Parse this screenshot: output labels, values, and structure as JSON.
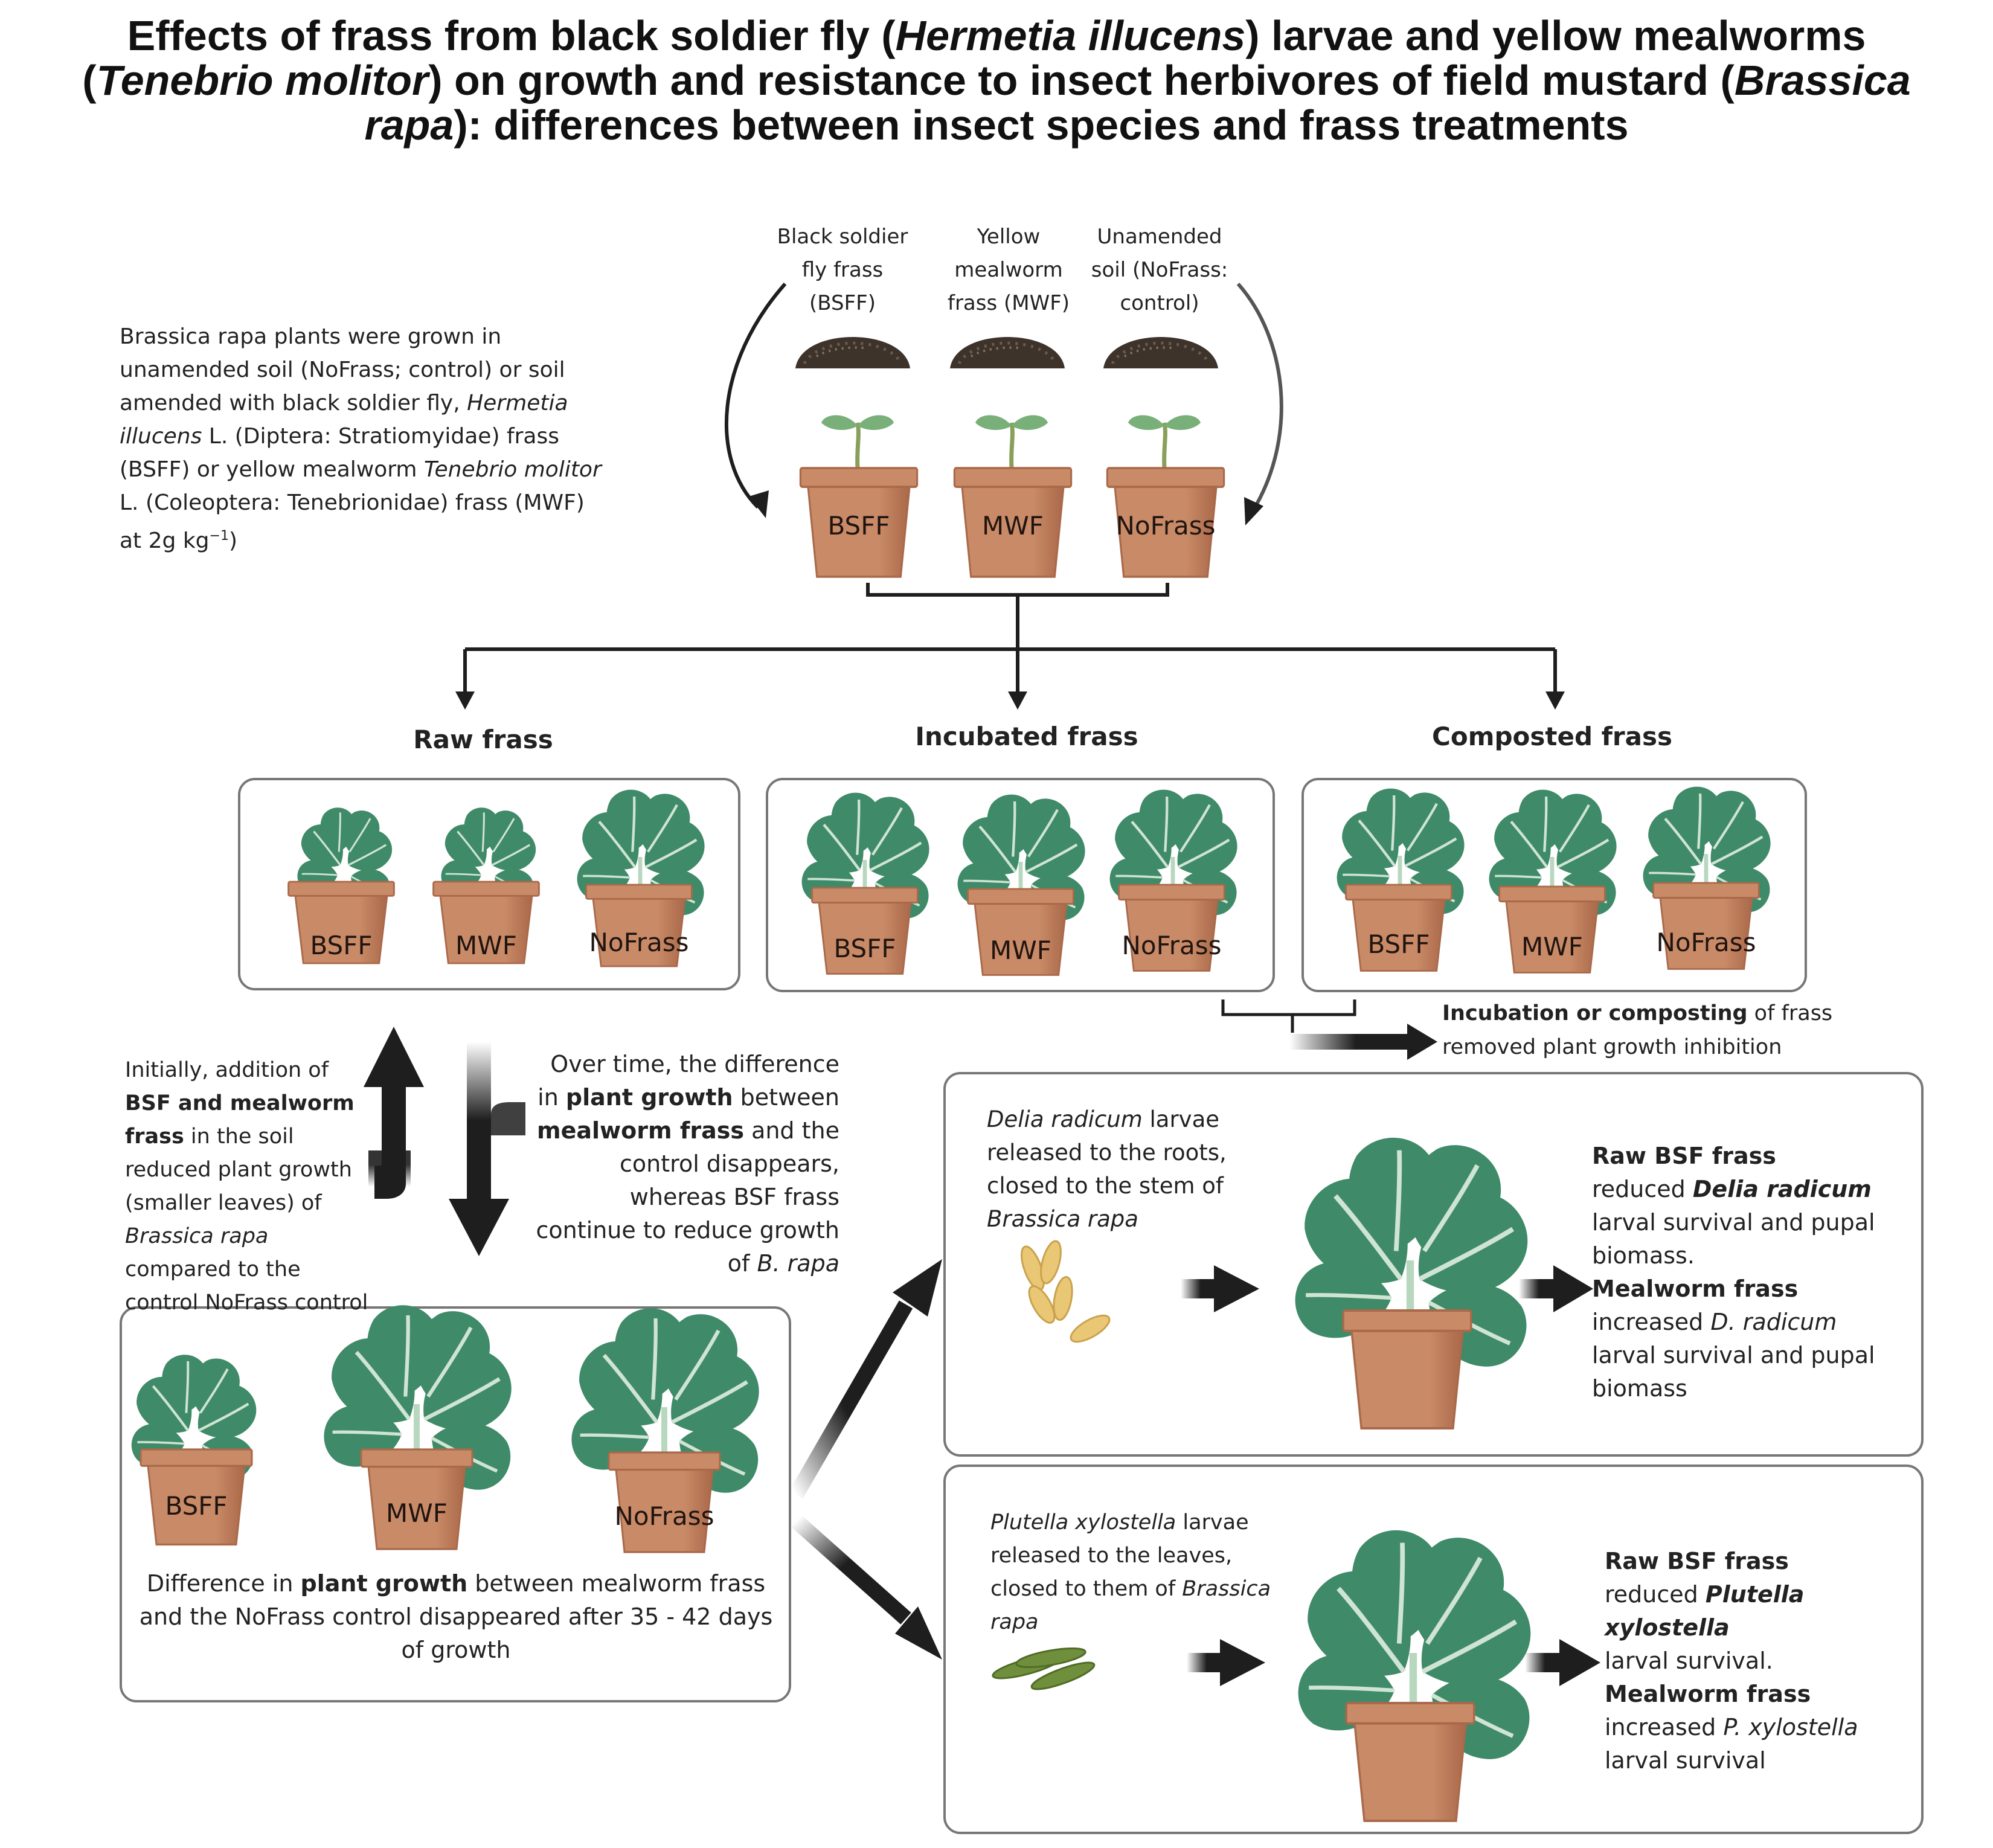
{
  "title": {
    "p1": "Effects of frass from black soldier fly (",
    "sp1": "Hermetia illucens",
    "p2": ") larvae and yellow mealworms (",
    "sp2": "Tenebrio molitor",
    "p3": ") on growth and resistance to insect herbivores of field mustard (",
    "sp3": "Brassica rapa",
    "p4": "): differences between insect species and frass treatments"
  },
  "intro": {
    "t1": "Brassica rapa plants were grown in unamended soil (NoFrass; control) or soil  amended with black soldier fly, ",
    "sp1": "Hermetia illucens",
    "t2": " L. (Diptera: Stratiomyidae) frass (BSFF) or yellow mealworm ",
    "sp2": "Tenebrio molitor",
    "t3": " L. (Coleoptera: Tenebrionidae) frass (MWF) at 2g kg",
    "sup": "−1",
    "t4": ")"
  },
  "top_labels": {
    "bsff": "Black soldier fly frass (BSFF)",
    "mwf": "Yellow mealworm frass (MWF)",
    "nofrass": "Unamended soil (NoFrass: control)"
  },
  "treatments": [
    "BSFF",
    "MWF",
    "NoFrass"
  ],
  "groups": {
    "raw": "Raw frass",
    "incubated": "Incubated frass",
    "composted": "Composted frass"
  },
  "incubation_note": {
    "b": "Incubation or composting",
    "t": " of frass removed plant growth inhibition"
  },
  "initial_note": {
    "t1": "Initially, addition of ",
    "b1": "BSF and mealworm frass",
    "t2": " in the soil reduced plant growth (smaller leaves) of ",
    "sp": "Brassica rapa",
    "t3": " compared to the control NoFrass control"
  },
  "overtime_note": {
    "t1": "Over time, the difference in ",
    "b1": "plant growth",
    "t2": " between ",
    "b2": "mealworm frass",
    "t3": " and the control disappears, whereas BSF frass continue to reduce growth of ",
    "sp": "B. rapa"
  },
  "bottom_left": {
    "t1": "Difference in ",
    "b1": "plant growth",
    "t2": " between mealworm frass and the NoFrass control disappeared after 35 - 42 days of growth"
  },
  "delia": {
    "desc_sp": "Delia radicum",
    "desc_t": " larvae released to the roots, closed to the stem of ",
    "desc_sp2": "Brassica rapa",
    "r_b1": "Raw BSF frass",
    "r_t1": " reduced ",
    "r_sp1": "Delia radicum",
    "r_t2": " larval survival and pupal biomass.",
    "r_b2": "Mealworm frass",
    "r_t3": " increased ",
    "r_sp2": "D. radicum",
    "r_t4": " larval survival and pupal biomass"
  },
  "plutella": {
    "desc_sp": "Plutella xylostella",
    "desc_t": " larvae released to the  leaves, closed to them of  ",
    "desc_sp2": "Brassica rapa",
    "r_b1": "Raw BSF frass",
    "r_t1": " reduced ",
    "r_sp1": "Plutella xylostella",
    "r_t2": " larval survival.",
    "r_b2": "Mealworm frass",
    "r_t3": " increased ",
    "r_sp2": "P. xylostella",
    "r_t4": " larval survival"
  },
  "colors": {
    "pot": "#c98a67",
    "pot_dark": "#a9694a",
    "leaf": "#3f8a68",
    "leaf_light": "#6aa987",
    "vein": "#cfe4d2",
    "arrow": "#1e1e1e",
    "frass": "#3d332b"
  }
}
